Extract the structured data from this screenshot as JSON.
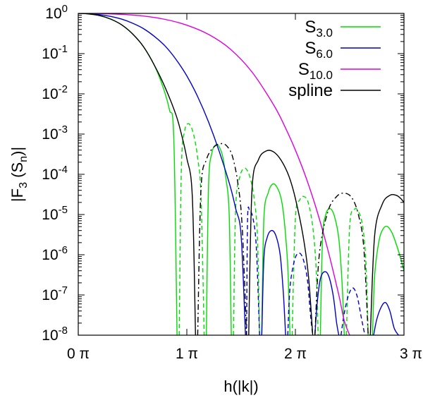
{
  "chart_data": {
    "type": "line",
    "xlabel": "h(|k|)",
    "ylabel": "|F",
    "ylabel_sub1": "3",
    "ylabel_mid": " (S",
    "ylabel_sub2": "n",
    "ylabel_end": ")|",
    "xlim": [
      0,
      3
    ],
    "ylim": [
      1e-08,
      1
    ],
    "y_scale": "log",
    "x_ticks": [
      {
        "value": 0,
        "label": "0 π"
      },
      {
        "value": 1,
        "label": "1 π"
      },
      {
        "value": 2,
        "label": "2 π"
      },
      {
        "value": 3,
        "label": "3 π"
      }
    ],
    "y_ticks": [
      {
        "exp": 0,
        "base": "10",
        "sup": "0"
      },
      {
        "exp": -1,
        "base": "10",
        "sup": "-1"
      },
      {
        "exp": -2,
        "base": "10",
        "sup": "-2"
      },
      {
        "exp": -3,
        "base": "10",
        "sup": "-3"
      },
      {
        "exp": -4,
        "base": "10",
        "sup": "-4"
      },
      {
        "exp": -5,
        "base": "10",
        "sup": "-5"
      },
      {
        "exp": -6,
        "base": "10",
        "sup": "-6"
      },
      {
        "exp": -7,
        "base": "10",
        "sup": "-7"
      },
      {
        "exp": -8,
        "base": "10",
        "sup": "-8"
      }
    ],
    "grid": false,
    "legend_position": "top-right",
    "legend": [
      {
        "base": "S",
        "sub": "3.0",
        "color": "#00dd00"
      },
      {
        "base": "S",
        "sub": "6.0",
        "color": "#0000cc"
      },
      {
        "base": "S",
        "sub": "10.0",
        "color": "#dd00dd"
      },
      {
        "base": "spline",
        "sub": "",
        "color": "#000000"
      }
    ],
    "series": [
      {
        "legend_index": 0,
        "color": "#00dd00",
        "segments": [
          {
            "style": "solid",
            "x": [
              0,
              0.1,
              0.2,
              0.3,
              0.4,
              0.5,
              0.6,
              0.7,
              0.78,
              0.84,
              0.88,
              0.91
            ],
            "y": [
              1,
              0.97,
              0.88,
              0.72,
              0.52,
              0.31,
              0.15,
              0.052,
              0.015,
              0.004,
              0.0008,
              1e-08
            ]
          },
          {
            "style": "dashed",
            "x": [
              0.93,
              0.95,
              0.98,
              1.01,
              1.04,
              1.07,
              1.1,
              1.13,
              1.16
            ],
            "y": [
              1e-08,
              0.00015,
              0.0012,
              0.0018,
              0.0015,
              0.0008,
              0.00025,
              3e-05,
              1e-08
            ]
          },
          {
            "style": "solid",
            "x": [
              1.18,
              1.2,
              1.23,
              1.27,
              1.3,
              1.33,
              1.36,
              1.39,
              1.41
            ],
            "y": [
              1e-08,
              5e-05,
              0.00033,
              0.00055,
              0.00047,
              0.00028,
              8e-05,
              1e-05,
              1e-08
            ]
          },
          {
            "style": "dashed",
            "x": [
              1.43,
              1.45,
              1.49,
              1.53,
              1.56,
              1.59,
              1.62,
              1.65,
              1.67
            ],
            "y": [
              1e-08,
              1.5e-05,
              9e-05,
              0.00014,
              0.00012,
              7e-05,
              2.5e-05,
              3e-06,
              1e-08
            ]
          },
          {
            "style": "solid",
            "x": [
              1.69,
              1.71,
              1.75,
              1.79,
              1.83,
              1.87,
              1.9,
              1.93,
              1.95
            ],
            "y": [
              1e-08,
              8e-06,
              3.5e-05,
              5.7e-05,
              4.8e-05,
              2.4e-05,
              6e-06,
              5e-07,
              1e-08
            ]
          },
          {
            "style": "dashed",
            "x": [
              1.97,
              2.0,
              2.04,
              2.08,
              2.12,
              2.16,
              2.19,
              2.21
            ],
            "y": [
              1e-08,
              8e-06,
              2.3e-05,
              2.8e-05,
              1.9e-05,
              5e-06,
              5e-07,
              1e-08
            ]
          },
          {
            "style": "solid",
            "x": [
              2.23,
              2.25,
              2.28,
              2.32,
              2.36,
              2.4,
              2.43,
              2.45
            ],
            "y": [
              1e-08,
              2.5e-06,
              1e-05,
              1.4e-05,
              9e-06,
              2.5e-06,
              2e-07,
              1e-08
            ]
          },
          {
            "style": "dashed",
            "x": [
              2.47,
              2.5,
              2.54,
              2.58,
              2.62,
              2.65,
              2.67
            ],
            "y": [
              1e-08,
              5e-06,
              1.3e-05,
              1.2e-05,
              5e-06,
              6e-07,
              1e-08
            ]
          },
          {
            "style": "solid",
            "x": [
              2.71,
              2.73,
              2.77,
              2.81,
              2.85,
              2.89,
              2.93,
              2.97,
              3.0
            ],
            "y": [
              1e-08,
              3e-07,
              2.2e-06,
              4.5e-06,
              5e-06,
              3.5e-06,
              1.8e-06,
              8e-07,
              4e-07
            ]
          }
        ]
      },
      {
        "legend_index": 1,
        "color": "#0000cc",
        "segments": [
          {
            "style": "solid",
            "x": [
              0,
              0.1,
              0.2,
              0.3,
              0.4,
              0.5,
              0.6,
              0.7,
              0.8,
              0.9,
              1.0,
              1.1,
              1.2,
              1.3,
              1.4,
              1.45,
              1.5,
              1.54
            ],
            "y": [
              1,
              0.98,
              0.93,
              0.84,
              0.72,
              0.57,
              0.42,
              0.27,
              0.155,
              0.072,
              0.028,
              0.0085,
              0.002,
              0.00036,
              5e-05,
              1.4e-05,
              3e-06,
              1e-08
            ]
          },
          {
            "style": "dashed",
            "x": [
              1.55,
              1.56,
              1.58,
              1.61,
              1.64,
              1.67
            ],
            "y": [
              1e-08,
              8e-06,
              1.2e-05,
              8e-06,
              1.5e-06,
              1e-08
            ]
          },
          {
            "style": "solid",
            "x": [
              1.69,
              1.71,
              1.74,
              1.78,
              1.82,
              1.86,
              1.89,
              1.91
            ],
            "y": [
              1e-08,
              8e-07,
              2.7e-06,
              4e-06,
              3e-06,
              1e-06,
              1e-07,
              1e-08
            ]
          },
          {
            "style": "dashed",
            "x": [
              1.93,
              1.95,
              1.99,
              2.03,
              2.07,
              2.11,
              2.14,
              2.16
            ],
            "y": [
              1e-08,
              1.5e-07,
              7e-07,
              1.1e-06,
              8e-07,
              2.5e-07,
              3e-08,
              1e-08
            ]
          },
          {
            "style": "solid",
            "x": [
              2.18,
              2.2,
              2.23,
              2.27,
              2.31,
              2.35,
              2.38,
              2.4
            ],
            "y": [
              1e-08,
              6e-08,
              2.5e-07,
              3.8e-07,
              2.8e-07,
              9e-08,
              2e-08,
              1e-08
            ]
          },
          {
            "style": "dashed",
            "x": [
              2.42,
              2.45,
              2.49,
              2.53,
              2.57,
              2.61,
              2.64
            ],
            "y": [
              1e-08,
              3.5e-08,
              1e-07,
              1.5e-07,
              9e-08,
              2.5e-08,
              1e-08
            ]
          },
          {
            "style": "solid",
            "x": [
              2.72,
              2.75,
              2.79,
              2.83,
              2.87,
              2.91,
              2.95
            ],
            "y": [
              1e-08,
              2.5e-08,
              5e-08,
              6.5e-08,
              4e-08,
              1.5e-08,
              1e-08
            ]
          }
        ]
      },
      {
        "legend_index": 2,
        "color": "#dd00dd",
        "segments": [
          {
            "style": "solid",
            "x": [
              0,
              0.2,
              0.4,
              0.6,
              0.8,
              1.0,
              1.2,
              1.4,
              1.6,
              1.8,
              1.9,
              2.0,
              2.1,
              2.2,
              2.3,
              2.4,
              2.45,
              2.5
            ],
            "y": [
              1,
              0.99,
              0.95,
              0.86,
              0.71,
              0.51,
              0.3,
              0.13,
              0.035,
              0.0053,
              0.0016,
              0.0004,
              8e-05,
              1.2e-05,
              1.3e-06,
              1e-07,
              2.3e-08,
              1e-08
            ]
          }
        ]
      },
      {
        "legend_index": 3,
        "color": "#000000",
        "segments": [
          {
            "style": "solid",
            "x": [
              0,
              0.1,
              0.2,
              0.3,
              0.4,
              0.5,
              0.6,
              0.7,
              0.8,
              0.9,
              0.95,
              1.0,
              1.05,
              1.08
            ],
            "y": [
              1,
              0.97,
              0.88,
              0.72,
              0.52,
              0.31,
              0.15,
              0.052,
              0.0145,
              0.003,
              0.001,
              0.00025,
              3e-05,
              1e-08
            ]
          },
          {
            "style": "dashdot",
            "x": [
              1.1,
              1.13,
              1.18,
              1.25,
              1.32,
              1.37,
              1.42,
              1.47,
              1.51,
              1.55
            ],
            "y": [
              1e-08,
              4e-05,
              0.00023,
              0.00048,
              0.00058,
              0.0005,
              0.00028,
              6e-05,
              5e-06,
              1e-08
            ]
          },
          {
            "style": "solid",
            "x": [
              1.57,
              1.6,
              1.66,
              1.73,
              1.8,
              1.87,
              1.94,
              2.0,
              2.07,
              2.12,
              2.16
            ],
            "y": [
              1e-08,
              4e-05,
              0.00023,
              0.00038,
              0.00036,
              0.00022,
              9e-05,
              2.5e-05,
              3e-06,
              3e-07,
              1e-08
            ]
          },
          {
            "style": "dashdot",
            "x": [
              2.18,
              2.22,
              2.3,
              2.38,
              2.45,
              2.52,
              2.58,
              2.63,
              2.67
            ],
            "y": [
              1e-08,
              1e-06,
              1.2e-05,
              2.8e-05,
              3.4e-05,
              2.6e-05,
              1e-05,
              1.5e-06,
              1e-08
            ]
          },
          {
            "style": "solid",
            "x": [
              2.69,
              2.73,
              2.8,
              2.87,
              2.93,
              2.97,
              3.0
            ],
            "y": [
              1e-08,
              3e-06,
              1.8e-05,
              3e-05,
              3e-05,
              2.5e-05,
              2e-05
            ]
          }
        ]
      }
    ]
  }
}
